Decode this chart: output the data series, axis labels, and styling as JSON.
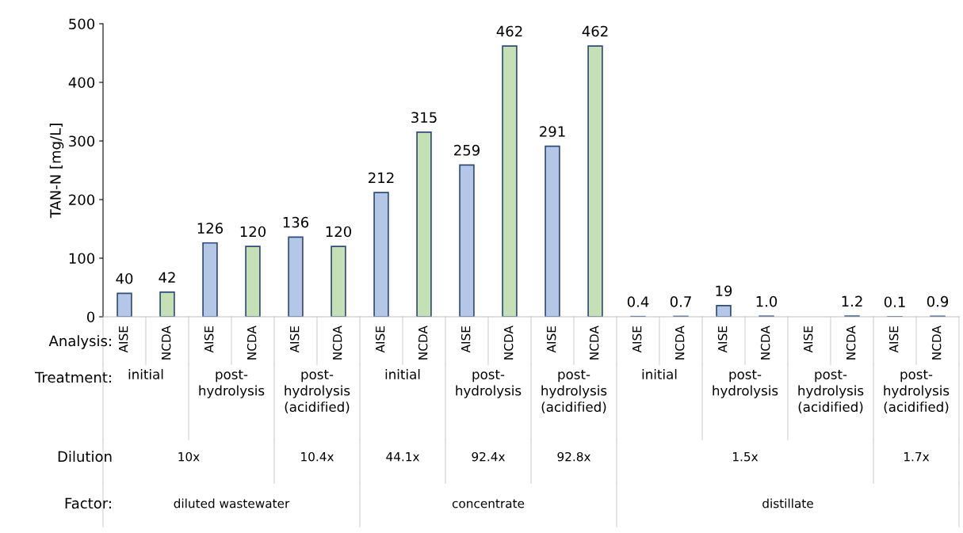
{
  "chart_data": {
    "type": "bar",
    "ylabel": "TAN-N [mg/L]",
    "categories": [
      "AISE",
      "NCDA",
      "AISE",
      "NCDA",
      "AISE",
      "NCDA",
      "AISE",
      "NCDA",
      "AISE",
      "NCDA",
      "AISE",
      "NCDA",
      "AISE",
      "NCDA",
      "AISE",
      "NCDA",
      "AISE",
      "NCDA",
      "AISE",
      "NCDA"
    ],
    "values": [
      40,
      42,
      126,
      120,
      136,
      120,
      212,
      315,
      259,
      462,
      291,
      462,
      0.4,
      0.7,
      19,
      1.0,
      null,
      1.2,
      0.1,
      0.9
    ],
    "value_labels": [
      "40",
      "42",
      "126",
      "120",
      "136",
      "120",
      "212",
      "315",
      "259",
      "462",
      "291",
      "462",
      "0.4",
      "0.7",
      "19",
      "1.0",
      null,
      "1.2",
      "0.1",
      "0.9"
    ],
    "colors": [
      "#b4c7e7",
      "#c5e0b4",
      "#b4c7e7",
      "#c5e0b4",
      "#b4c7e7",
      "#c5e0b4",
      "#b4c7e7",
      "#c5e0b4",
      "#b4c7e7",
      "#c5e0b4",
      "#b4c7e7",
      "#c5e0b4",
      "#b4c7e7",
      "#c5e0b4",
      "#b4c7e7",
      "#c5e0b4",
      "#b4c7e7",
      "#c5e0b4",
      "#b4c7e7",
      "#c5e0b4"
    ],
    "ylim": [
      0,
      500
    ],
    "yticks": [
      0,
      100,
      200,
      300,
      400,
      500
    ],
    "grid": false,
    "annotations": [
      "Analysis:",
      "Treatment:",
      "initial",
      "post-\nhydrolysis",
      "post-\nhydrolysis\n(acidified)",
      "initial",
      "post-\nhydrolysis",
      "post-\nhydrolysis\n(acidified)",
      "initial",
      "post-\nhydrolysis",
      "post-\nhydrolysis\n(acidified)",
      "post-\nhydrolysis\n(acidified)",
      "Dilution",
      "10x",
      "10.4x",
      "44.1x",
      "92.4x",
      "92.8x",
      "1.5x",
      "1.7x",
      "Factor:",
      "diluted wastewater",
      "concentrate",
      "distillate"
    ]
  }
}
